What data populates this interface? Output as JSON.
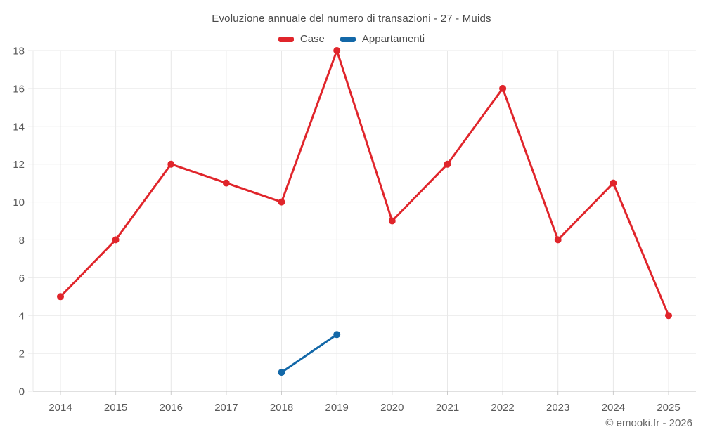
{
  "chart_data": {
    "type": "line",
    "title": "Evoluzione annuale del numero di transazioni - 27 - Muids",
    "categories": [
      "2014",
      "2015",
      "2016",
      "2017",
      "2018",
      "2019",
      "2020",
      "2021",
      "2022",
      "2023",
      "2024",
      "2025"
    ],
    "series": [
      {
        "name": "Case",
        "color": "#e0252b",
        "x": [
          "2014",
          "2015",
          "2016",
          "2017",
          "2018",
          "2019",
          "2020",
          "2021",
          "2022",
          "2023",
          "2024",
          "2025"
        ],
        "values": [
          5,
          8,
          12,
          11,
          10,
          18,
          9,
          12,
          16,
          8,
          11,
          4
        ]
      },
      {
        "name": "Appartamenti",
        "color": "#1368a8",
        "x": [
          "2018",
          "2019"
        ],
        "values": [
          1,
          3
        ]
      }
    ],
    "yaxis": {
      "min": 0,
      "max": 18,
      "step": 2
    },
    "xlabel": "",
    "ylabel": "",
    "grid": true,
    "legend_position": "top",
    "attribution": "© emooki.fr - 2026"
  }
}
